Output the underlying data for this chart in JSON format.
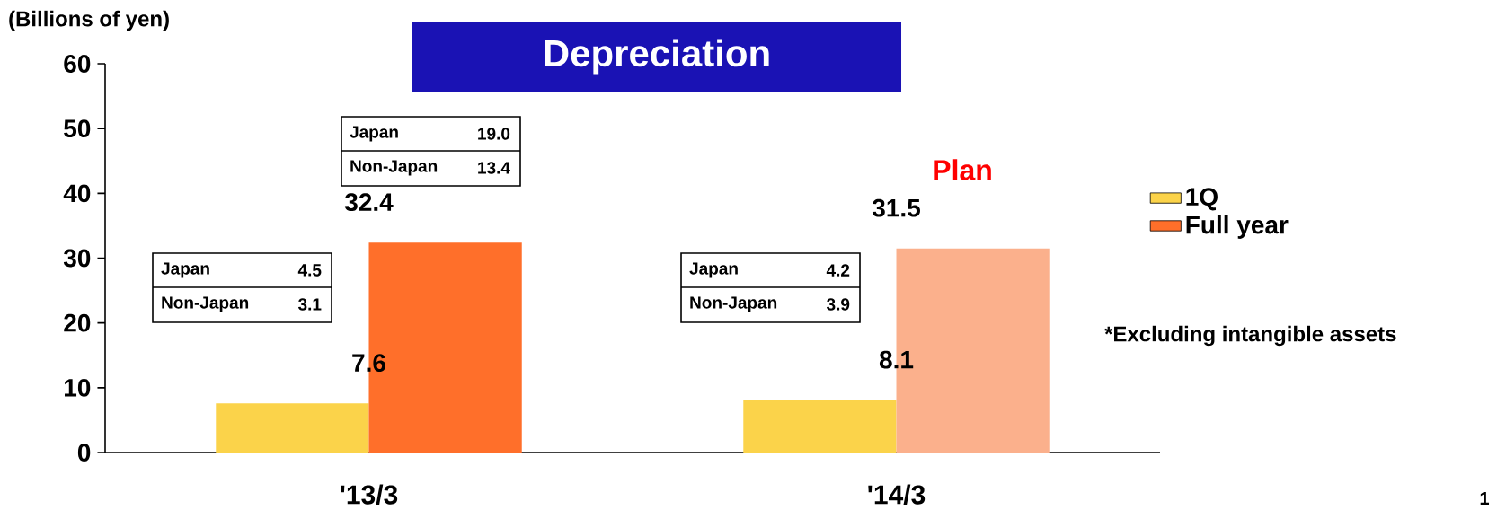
{
  "chart_data": {
    "type": "bar",
    "title": "Depreciation",
    "ylabel": "(Billions of yen)",
    "categories": [
      "'13/3",
      "'14/3"
    ],
    "series": [
      {
        "name": "1Q",
        "color": "#fbd34a",
        "values": [
          7.6,
          8.1
        ]
      },
      {
        "name": "Full year",
        "color": "#ff6f2a",
        "colors": [
          "#ff6f2a",
          "#fbb08c"
        ],
        "values": [
          32.4,
          31.5
        ]
      }
    ],
    "ylim": [
      0,
      60
    ],
    "yticks": [
      0,
      10,
      20,
      30,
      40,
      50,
      60
    ],
    "data_labels": true,
    "legend": "right",
    "annotations": [
      "Japan",
      "4.5",
      "Non-Japan",
      "3.1",
      "Japan",
      "19.0",
      "Non-Japan",
      "13.4",
      "Japan",
      "4.2",
      "Non-Japan",
      "3.9",
      "Plan",
      "*Excluding intangible assets",
      "1"
    ]
  }
}
